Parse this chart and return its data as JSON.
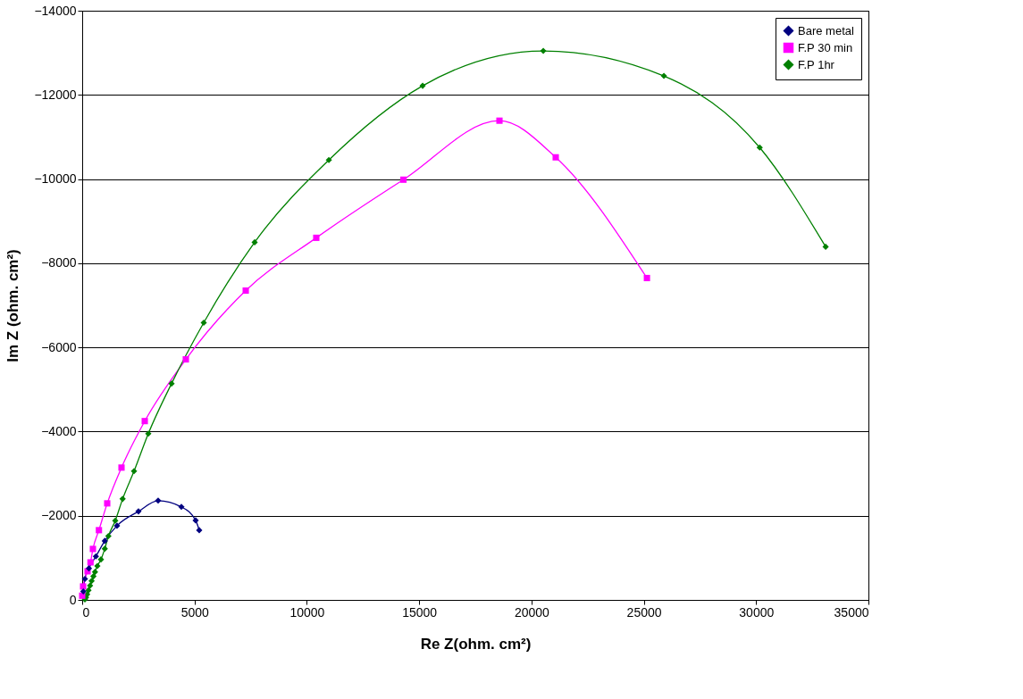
{
  "chart_data": {
    "type": "line",
    "xlabel": "Re Z(ohm. cm²)",
    "ylabel": "Im Z (ohm. cm²)",
    "xlim": [
      0,
      35000
    ],
    "xticks": [
      0,
      5000,
      10000,
      15000,
      20000,
      25000,
      30000,
      35000
    ],
    "ylim": [
      0,
      -14000
    ],
    "yticks": [
      0,
      -2000,
      -4000,
      -6000,
      -8000,
      -10000,
      -12000,
      -14000
    ],
    "grid": "y",
    "legend": "top right",
    "series": [
      {
        "name": "Bare metal",
        "color": "#000080",
        "marker": "diamond",
        "x": [
          50,
          120,
          300,
          610,
          1006,
          1550,
          2505,
          3380,
          4415,
          5050,
          5210
        ],
        "values": [
          -200,
          -500,
          -750,
          -1035,
          -1402,
          -1763,
          -2103,
          -2358,
          -2210,
          -1890,
          -1657
        ]
      },
      {
        "name": "F.P 30 min",
        "color": "#ff00ff",
        "marker": "square",
        "x": [
          0,
          40,
          239,
          370,
          477,
          744,
          1114,
          1750,
          2785,
          4614,
          7280,
          10420,
          14300,
          18575,
          21080,
          25140
        ],
        "values": [
          -100,
          -320,
          -680,
          -892,
          -1211,
          -1657,
          -2294,
          -3144,
          -4249,
          -5715,
          -7350,
          -8604,
          -9985,
          -11387,
          -10516,
          -7648
        ]
      },
      {
        "name": "F.P 1hr",
        "color": "#008000",
        "marker": "diamond",
        "x": [
          120,
          170,
          220,
          280,
          350,
          420,
          500,
          570,
          676,
          835,
          1006,
          1166,
          1472,
          1800,
          2307,
          2943,
          3978,
          5410,
          7677,
          10980,
          15155,
          20525,
          25895,
          30160,
          33095
        ],
        "values": [
          -10,
          -60,
          -130,
          -230,
          -340,
          -450,
          -560,
          -665,
          -807,
          -962,
          -1217,
          -1515,
          -1884,
          -2400,
          -3059,
          -3951,
          -5141,
          -6586,
          -8498,
          -10453,
          -12216,
          -13044,
          -12450,
          -10750,
          -8392
        ]
      }
    ]
  }
}
